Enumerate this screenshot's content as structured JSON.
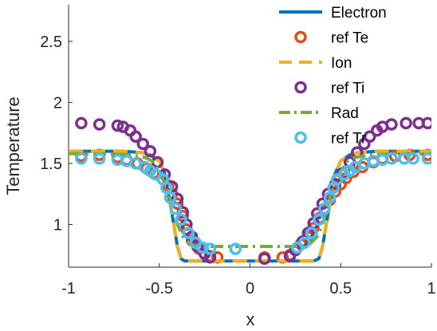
{
  "chart_data": {
    "type": "line",
    "title": "",
    "xlabel": "x",
    "ylabel": "Temperature",
    "xlim": [
      -1,
      1
    ],
    "ylim": [
      0.65,
      2.8
    ],
    "xticks": [
      -1,
      -0.5,
      0,
      0.5,
      1
    ],
    "xtick_labels": [
      "-1",
      "-0.5",
      "0",
      "0.5",
      "1"
    ],
    "yticks": [
      1,
      1.5,
      2,
      2.5
    ],
    "ytick_labels": [
      "1",
      "1.5",
      "2",
      "2.5"
    ],
    "grid": false,
    "legend_position": "top-right",
    "series": [
      {
        "name": "Electron",
        "style": "line",
        "color": "#0072BD",
        "x": [
          -1,
          -0.7,
          -0.6,
          -0.55,
          -0.5,
          -0.47,
          -0.45,
          -0.42,
          -0.4,
          -0.38,
          -0.36,
          -0.3,
          0,
          0.3,
          0.35,
          0.38,
          0.4,
          0.42,
          0.45,
          0.47,
          0.5,
          0.55,
          0.6,
          0.7,
          1
        ],
        "y": [
          1.6,
          1.6,
          1.59,
          1.57,
          1.52,
          1.42,
          1.25,
          1.0,
          0.82,
          0.72,
          0.7,
          0.7,
          0.7,
          0.7,
          0.7,
          0.72,
          0.82,
          1.0,
          1.25,
          1.42,
          1.52,
          1.57,
          1.59,
          1.6,
          1.6
        ]
      },
      {
        "name": "ref Te",
        "style": "circle",
        "color": "#D95319",
        "x": [
          -0.93,
          -0.83,
          -0.73,
          -0.68,
          -0.62,
          -0.57,
          -0.53,
          -0.48,
          -0.45,
          -0.43,
          -0.4,
          -0.37,
          -0.35,
          -0.32,
          -0.28,
          -0.25,
          -0.22,
          -0.18,
          0.08,
          0.18,
          0.22,
          0.25,
          0.28,
          0.32,
          0.35,
          0.38,
          0.41,
          0.44,
          0.47,
          0.5,
          0.53,
          0.57,
          0.62,
          0.68,
          0.73,
          0.8,
          0.88,
          0.98
        ],
        "y": [
          1.56,
          1.57,
          1.55,
          1.53,
          1.5,
          1.46,
          1.42,
          1.37,
          1.32,
          1.25,
          1.17,
          1.07,
          0.96,
          0.87,
          0.8,
          0.76,
          0.74,
          0.73,
          0.73,
          0.73,
          0.75,
          0.79,
          0.84,
          0.9,
          0.97,
          1.05,
          1.12,
          1.2,
          1.27,
          1.33,
          1.38,
          1.43,
          1.47,
          1.51,
          1.54,
          1.56,
          1.57,
          1.57
        ]
      },
      {
        "name": "Ion",
        "style": "dashed",
        "color": "#EDB120",
        "x": [
          -1,
          -0.7,
          -0.6,
          -0.55,
          -0.5,
          -0.47,
          -0.45,
          -0.42,
          -0.4,
          -0.38,
          -0.36,
          -0.3,
          0,
          0.3,
          0.35,
          0.38,
          0.4,
          0.42,
          0.45,
          0.47,
          0.5,
          0.55,
          0.6,
          0.7,
          1
        ],
        "y": [
          1.6,
          1.6,
          1.59,
          1.57,
          1.52,
          1.42,
          1.25,
          1.0,
          0.82,
          0.72,
          0.7,
          0.7,
          0.7,
          0.7,
          0.7,
          0.72,
          0.82,
          1.0,
          1.25,
          1.42,
          1.52,
          1.57,
          1.59,
          1.6,
          1.6
        ]
      },
      {
        "name": "ref Ti",
        "style": "circle",
        "color": "#7E2F8E",
        "x": [
          -0.93,
          -0.83,
          -0.73,
          -0.7,
          -0.66,
          -0.63,
          -0.59,
          -0.55,
          -0.51,
          -0.47,
          -0.43,
          -0.4,
          -0.37,
          -0.35,
          -0.32,
          -0.29,
          -0.25,
          -0.22,
          0.08,
          0.22,
          0.25,
          0.29,
          0.32,
          0.35,
          0.37,
          0.4,
          0.43,
          0.47,
          0.51,
          0.55,
          0.59,
          0.63,
          0.66,
          0.7,
          0.73,
          0.78,
          0.86,
          0.93,
          0.98
        ],
        "y": [
          1.83,
          1.82,
          1.81,
          1.8,
          1.77,
          1.72,
          1.66,
          1.6,
          1.51,
          1.41,
          1.31,
          1.21,
          1.1,
          1.0,
          0.9,
          0.82,
          0.76,
          0.73,
          0.72,
          0.74,
          0.79,
          0.86,
          0.93,
          1.01,
          1.09,
          1.17,
          1.25,
          1.33,
          1.42,
          1.51,
          1.59,
          1.66,
          1.72,
          1.77,
          1.8,
          1.82,
          1.83,
          1.83,
          1.83
        ]
      },
      {
        "name": "Rad",
        "style": "dashdot",
        "color": "#77AC30",
        "x": [
          -1,
          -0.8,
          -0.65,
          -0.58,
          -0.54,
          -0.51,
          -0.48,
          -0.45,
          -0.42,
          -0.4,
          -0.37,
          -0.33,
          -0.28,
          -0.22,
          0,
          0.22,
          0.28,
          0.33,
          0.37,
          0.4,
          0.42,
          0.45,
          0.48,
          0.51,
          0.54,
          0.58,
          0.65,
          0.8,
          1
        ],
        "y": [
          1.58,
          1.58,
          1.57,
          1.55,
          1.52,
          1.46,
          1.37,
          1.26,
          1.12,
          1.0,
          0.9,
          0.84,
          0.82,
          0.82,
          0.82,
          0.82,
          0.82,
          0.84,
          0.9,
          1.0,
          1.12,
          1.26,
          1.37,
          1.46,
          1.52,
          1.55,
          1.57,
          1.58,
          1.58
        ]
      },
      {
        "name": "ref Tr",
        "style": "circle",
        "color": "#4DBEEE",
        "x": [
          -0.93,
          -0.83,
          -0.73,
          -0.68,
          -0.63,
          -0.58,
          -0.55,
          -0.52,
          -0.48,
          -0.46,
          -0.44,
          -0.41,
          -0.38,
          -0.34,
          -0.3,
          -0.26,
          -0.22,
          -0.08,
          0.26,
          0.3,
          0.34,
          0.38,
          0.41,
          0.44,
          0.46,
          0.48,
          0.52,
          0.55,
          0.58,
          0.63,
          0.68,
          0.73,
          0.78,
          0.85,
          0.9,
          0.98
        ],
        "y": [
          1.54,
          1.54,
          1.53,
          1.52,
          1.5,
          1.47,
          1.44,
          1.41,
          1.37,
          1.3,
          1.22,
          1.13,
          1.04,
          0.93,
          0.85,
          0.81,
          0.8,
          0.8,
          0.81,
          0.85,
          0.93,
          1.04,
          1.13,
          1.22,
          1.3,
          1.37,
          1.41,
          1.44,
          1.47,
          1.5,
          1.52,
          1.53,
          1.54,
          1.54,
          1.54,
          1.54
        ]
      }
    ]
  }
}
